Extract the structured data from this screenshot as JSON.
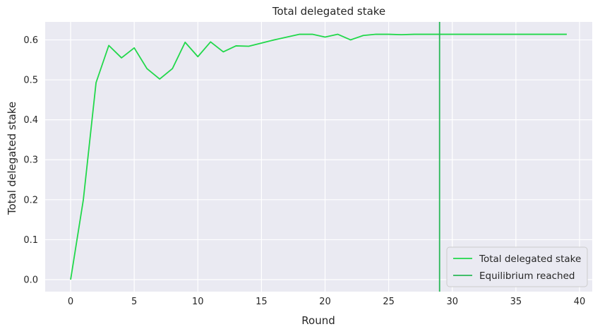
{
  "chart_data": {
    "type": "line",
    "title": "Total delegated stake",
    "xlabel": "Round",
    "ylabel": "Total delegated stake",
    "xlim": [
      -2,
      41
    ],
    "ylim": [
      -0.03,
      0.645
    ],
    "xticks": [
      0,
      5,
      10,
      15,
      20,
      25,
      30,
      35,
      40
    ],
    "yticks": [
      0.0,
      0.1,
      0.2,
      0.3,
      0.4,
      0.5,
      0.6
    ],
    "xtick_labels": [
      "0",
      "5",
      "10",
      "15",
      "20",
      "25",
      "30",
      "35",
      "40"
    ],
    "ytick_labels": [
      "0.0",
      "0.1",
      "0.2",
      "0.3",
      "0.4",
      "0.5",
      "0.6"
    ],
    "grid": true,
    "legend_position": "lower-right",
    "background": "#eaeaf2",
    "series": [
      {
        "name": "Total delegated stake",
        "color": "#21d84a",
        "x": [
          0,
          1,
          2,
          3,
          4,
          5,
          6,
          7,
          8,
          9,
          10,
          11,
          12,
          13,
          14,
          15,
          16,
          17,
          18,
          19,
          20,
          21,
          22,
          23,
          24,
          25,
          26,
          27,
          28,
          29,
          30,
          31,
          32,
          33,
          34,
          35,
          36,
          37,
          38,
          39
        ],
        "values": [
          0.0,
          0.2,
          0.493,
          0.586,
          0.555,
          0.58,
          0.528,
          0.502,
          0.528,
          0.594,
          0.558,
          0.595,
          0.57,
          0.585,
          0.584,
          0.592,
          0.6,
          0.607,
          0.614,
          0.614,
          0.607,
          0.614,
          0.6,
          0.611,
          0.614,
          0.614,
          0.613,
          0.614,
          0.614,
          0.614,
          0.614,
          0.614,
          0.614,
          0.614,
          0.614,
          0.614,
          0.614,
          0.614,
          0.614,
          0.614
        ]
      }
    ],
    "vlines": [
      {
        "name": "Equilibrium reached",
        "x": 29,
        "color": "#2ab857"
      }
    ]
  }
}
